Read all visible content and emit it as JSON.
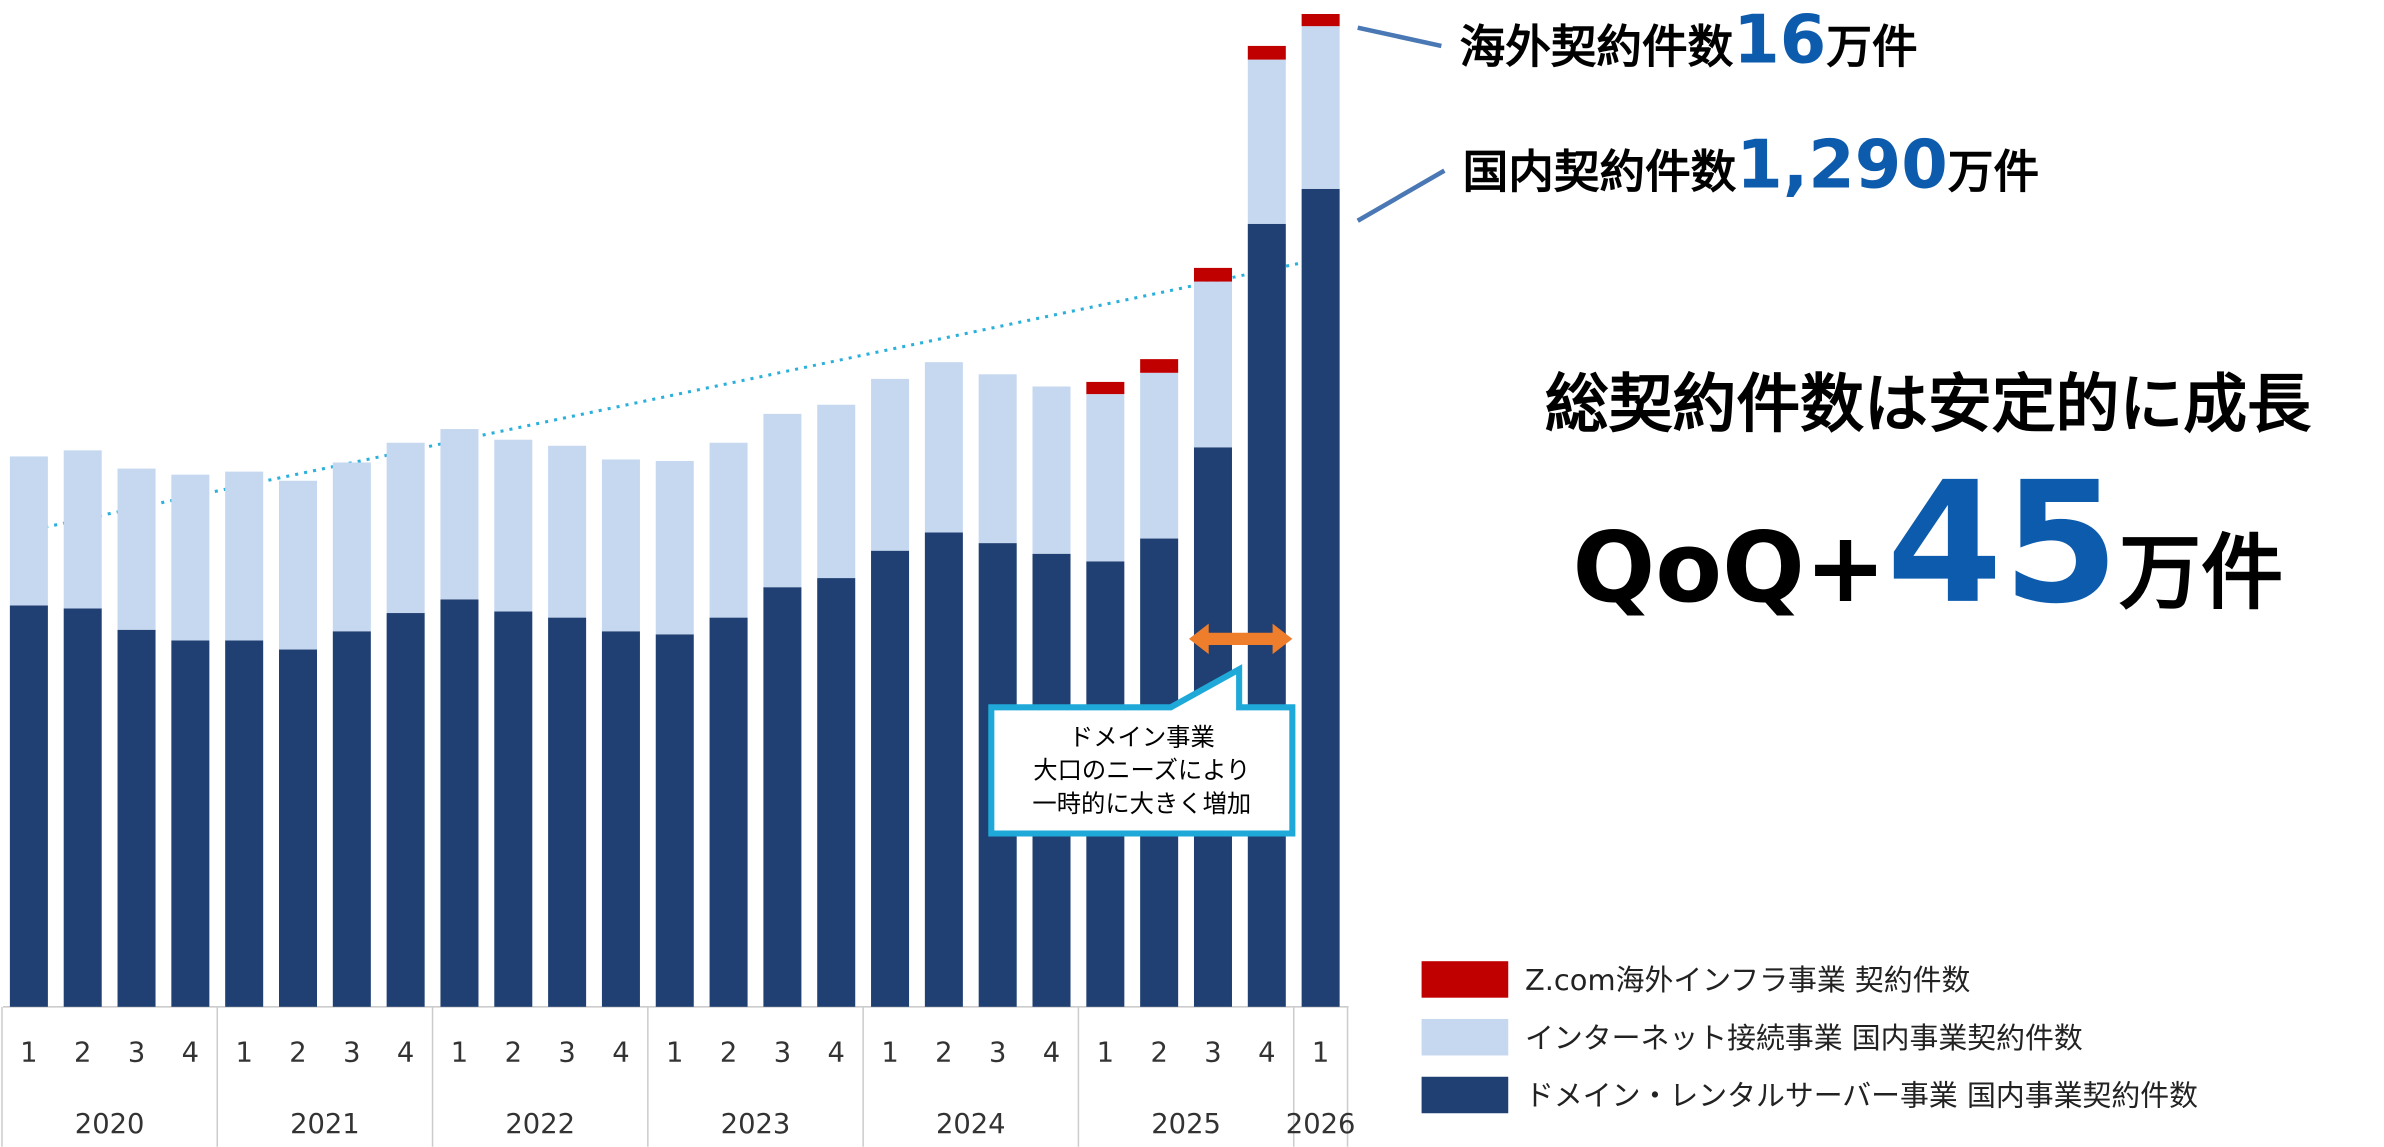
{
  "chart_data": {
    "type": "stacked_bar",
    "categories": [
      "1",
      "2",
      "3",
      "4",
      "1",
      "2",
      "3",
      "4",
      "1",
      "2",
      "3",
      "4",
      "1",
      "2",
      "3",
      "4",
      "1",
      "2",
      "3",
      "4",
      "1",
      "2",
      "3",
      "4",
      "1"
    ],
    "years": [
      "2020",
      "2021",
      "2022",
      "2023",
      "2024",
      "2025",
      "2026"
    ],
    "series": [
      {
        "name": "ドメイン・レンタルサーバー事業 国内事業契約件数",
        "color": "#203f72",
        "values": [
          528,
          524,
          496,
          482,
          482,
          470,
          494,
          518,
          536,
          520,
          512,
          494,
          490,
          512,
          552,
          564,
          600,
          624,
          610,
          596,
          586,
          616,
          736,
          1030,
          1076
        ]
      },
      {
        "name": "インターネット接続事業 国内事業契約件数",
        "color": "#c6d8f0",
        "values": [
          196,
          208,
          212,
          218,
          222,
          222,
          222,
          224,
          224,
          226,
          226,
          226,
          228,
          230,
          228,
          228,
          226,
          224,
          222,
          220,
          220,
          218,
          218,
          216,
          214
        ]
      },
      {
        "name": "Z.com海外インフラ事業 契約件数",
        "color": "#c00000",
        "values": [
          null,
          null,
          null,
          null,
          null,
          null,
          null,
          null,
          null,
          null,
          null,
          null,
          null,
          null,
          null,
          null,
          null,
          null,
          null,
          null,
          16,
          18,
          18,
          18,
          16
        ]
      }
    ],
    "annotations": [
      {
        "label": "海外契約件数",
        "value": "16",
        "unit": "万件"
      },
      {
        "label": "国内契約件数",
        "value": "1,290",
        "unit": "万件"
      }
    ],
    "headline": "総契約件数は安定的に成長",
    "qoq": {
      "label": "QoQ+",
      "value": "45",
      "unit": "万件"
    },
    "callout": [
      "ドメイン事業",
      "大口のニーズにより",
      "一時的に大きく増加"
    ]
  }
}
